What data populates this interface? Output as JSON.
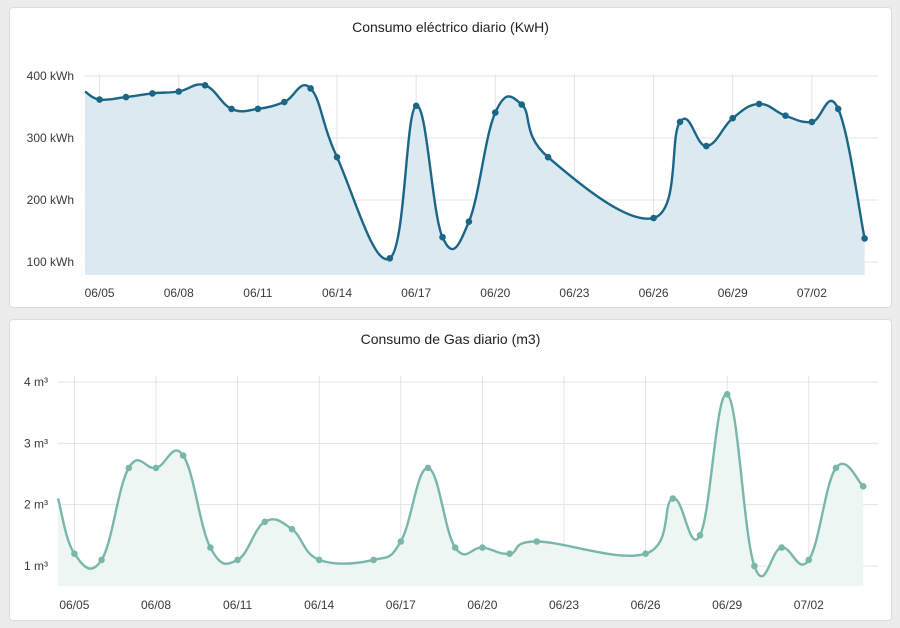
{
  "colors": {
    "electric_line": "#1b6586",
    "electric_fill": "#dbe9f0",
    "gas_line": "#79b7aa",
    "gas_fill": "#eef6f3",
    "grid": "#e3e3e3"
  },
  "chart_data": [
    {
      "type": "area",
      "title": "Consumo eléctrico diario (KwH)",
      "xlabel": "",
      "ylabel": "",
      "unit": "kWh",
      "x_tick_labels": [
        "06/05",
        "06/08",
        "06/11",
        "06/14",
        "06/17",
        "06/20",
        "06/23",
        "06/26",
        "06/29",
        "07/02"
      ],
      "y_tick_labels": [
        "100 kWh",
        "200 kWh",
        "300 kWh",
        "400 kWh"
      ],
      "y_ticks": [
        100,
        200,
        300,
        400
      ],
      "ylim": [
        78,
        410
      ],
      "xlim": [
        "2023-06-04",
        "2023-07-04"
      ],
      "grid": true,
      "start_partial_value": 375,
      "points": [
        {
          "x": "06/05",
          "y": 362
        },
        {
          "x": "06/06",
          "y": 366
        },
        {
          "x": "06/07",
          "y": 372
        },
        {
          "x": "06/08",
          "y": 375
        },
        {
          "x": "06/09",
          "y": 385
        },
        {
          "x": "06/10",
          "y": 347
        },
        {
          "x": "06/11",
          "y": 347
        },
        {
          "x": "06/12",
          "y": 358
        },
        {
          "x": "06/13",
          "y": 380
        },
        {
          "x": "06/14",
          "y": 269
        },
        {
          "x": "06/16",
          "y": 106
        },
        {
          "x": "06/17",
          "y": 352
        },
        {
          "x": "06/18",
          "y": 140
        },
        {
          "x": "06/19",
          "y": 165
        },
        {
          "x": "06/20",
          "y": 341
        },
        {
          "x": "06/21",
          "y": 354
        },
        {
          "x": "06/22",
          "y": 269
        },
        {
          "x": "06/26",
          "y": 171
        },
        {
          "x": "06/27",
          "y": 326
        },
        {
          "x": "06/28",
          "y": 287
        },
        {
          "x": "06/29",
          "y": 332
        },
        {
          "x": "06/30",
          "y": 355
        },
        {
          "x": "07/01",
          "y": 336
        },
        {
          "x": "07/02",
          "y": 326
        },
        {
          "x": "07/03",
          "y": 347
        },
        {
          "x": "07/04",
          "y": 138
        }
      ]
    },
    {
      "type": "area",
      "title": "Consumo de Gas diario (m3)",
      "xlabel": "",
      "ylabel": "",
      "unit": "m³",
      "x_tick_labels": [
        "06/05",
        "06/08",
        "06/11",
        "06/14",
        "06/17",
        "06/20",
        "06/23",
        "06/26",
        "06/29",
        "07/02"
      ],
      "y_tick_labels": [
        "1 m³",
        "2 m³",
        "3 m³",
        "4 m³"
      ],
      "y_ticks": [
        1,
        2,
        3,
        4
      ],
      "ylim": [
        0.66,
        4.05
      ],
      "xlim": [
        "2023-06-04",
        "2023-07-04"
      ],
      "grid": true,
      "start_partial_value": 2.1,
      "points": [
        {
          "x": "06/05",
          "y": 1.2
        },
        {
          "x": "06/06",
          "y": 1.1
        },
        {
          "x": "06/07",
          "y": 2.6
        },
        {
          "x": "06/08",
          "y": 2.6
        },
        {
          "x": "06/09",
          "y": 2.8
        },
        {
          "x": "06/10",
          "y": 1.3
        },
        {
          "x": "06/11",
          "y": 1.1
        },
        {
          "x": "06/12",
          "y": 1.72
        },
        {
          "x": "06/13",
          "y": 1.6
        },
        {
          "x": "06/14",
          "y": 1.1
        },
        {
          "x": "06/16",
          "y": 1.1
        },
        {
          "x": "06/17",
          "y": 1.4
        },
        {
          "x": "06/18",
          "y": 2.6
        },
        {
          "x": "06/19",
          "y": 1.3
        },
        {
          "x": "06/20",
          "y": 1.3
        },
        {
          "x": "06/21",
          "y": 1.2
        },
        {
          "x": "06/22",
          "y": 1.4
        },
        {
          "x": "06/26",
          "y": 1.2
        },
        {
          "x": "06/27",
          "y": 2.1
        },
        {
          "x": "06/28",
          "y": 1.5
        },
        {
          "x": "06/29",
          "y": 3.8
        },
        {
          "x": "06/30",
          "y": 1.0
        },
        {
          "x": "07/01",
          "y": 1.3
        },
        {
          "x": "07/02",
          "y": 1.1
        },
        {
          "x": "07/03",
          "y": 2.6
        },
        {
          "x": "07/04",
          "y": 2.3
        }
      ]
    }
  ]
}
